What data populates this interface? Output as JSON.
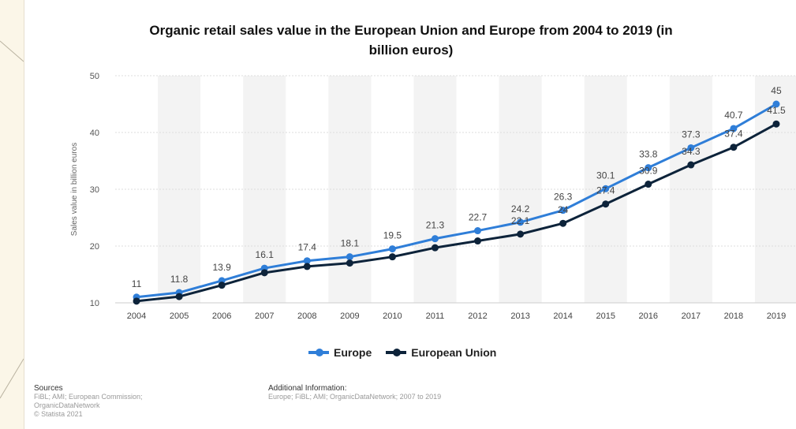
{
  "chart_data": {
    "type": "line",
    "title": "Organic retail sales value in the European Union and Europe from 2004 to 2019 (in billion euros)",
    "title_lines": [
      "Organic retail sales value in the European Union and Europe from 2004 to 2019 (in",
      "billion euros)"
    ],
    "ylabel": "Sales value in billion euros",
    "xlabel": "",
    "x": [
      "2004",
      "2005",
      "2006",
      "2007",
      "2008",
      "2009",
      "2010",
      "2011",
      "2012",
      "2013",
      "2014",
      "2015",
      "2016",
      "2017",
      "2018",
      "2019"
    ],
    "ylim": [
      10,
      50
    ],
    "yticks": [
      10,
      20,
      30,
      40,
      50
    ],
    "grid": true,
    "legend_position": "bottom",
    "series": [
      {
        "name": "Europe",
        "color": "#2f7ed8",
        "values": [
          11,
          11.8,
          13.9,
          16.1,
          17.4,
          18.1,
          19.5,
          21.3,
          22.7,
          24.2,
          26.3,
          30.1,
          33.8,
          37.3,
          40.7,
          45
        ],
        "labels_shown": true
      },
      {
        "name": "European Union",
        "color": "#0d233a",
        "values": [
          10.3,
          11.1,
          13.1,
          15.3,
          16.4,
          17,
          18.1,
          19.7,
          20.9,
          22.1,
          24,
          27.4,
          30.9,
          34.3,
          37.4,
          41.5
        ],
        "labels_shown": [
          false,
          false,
          false,
          false,
          false,
          false,
          false,
          false,
          false,
          true,
          true,
          true,
          true,
          true,
          true,
          true
        ]
      }
    ]
  },
  "footer": {
    "sources_heading": "Sources",
    "sources_lines": [
      "FiBL; AMI; European Commission;",
      "OrganicDataNetwork",
      "© Statista 2021"
    ],
    "additional_heading": "Additional Information:",
    "additional_text": "Europe; FiBL; AMI; OrganicDataNetwork; 2007 to 2019"
  }
}
